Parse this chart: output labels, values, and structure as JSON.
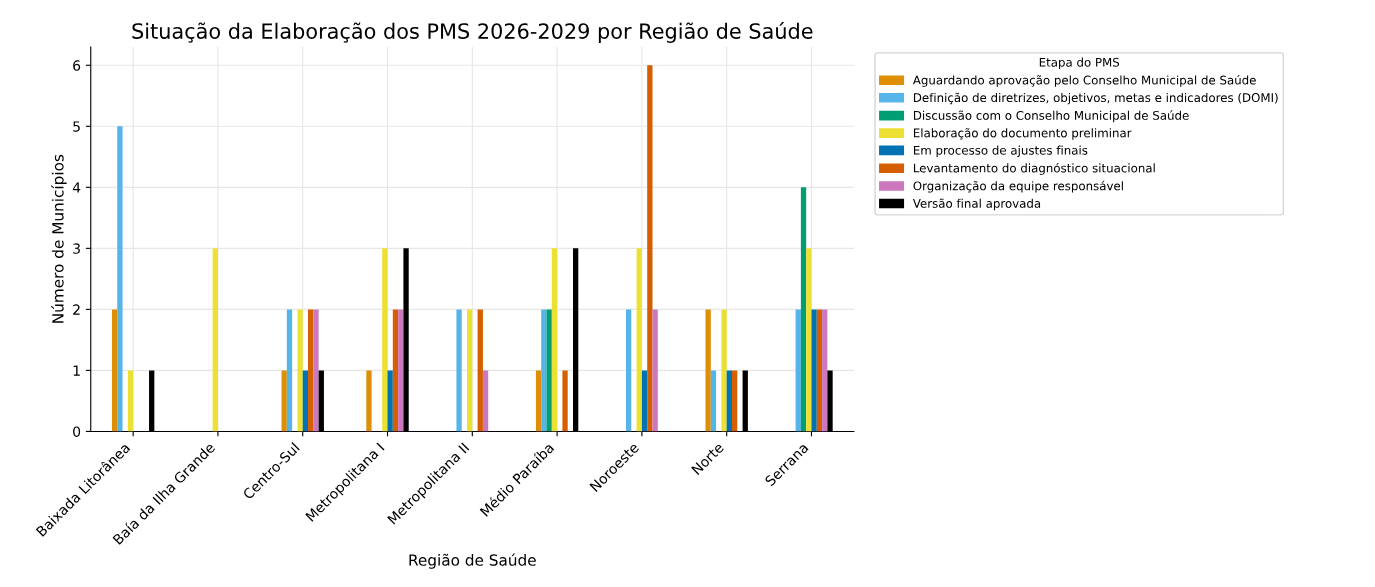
{
  "chart_data": {
    "type": "bar",
    "title": "Situação da Elaboração dos PMS 2026-2029 por Região de Saúde",
    "xlabel": "Região de Saúde",
    "ylabel": "Número de Municípios",
    "legend_title": "Etapa do PMS",
    "categories": [
      "Baixada Litorânea",
      "Baía da Ilha Grande",
      "Centro-Sul",
      "Metropolitana I",
      "Metropolitana II",
      "Médio Paraíba",
      "Noroeste",
      "Norte",
      "Serrana"
    ],
    "series": [
      {
        "name": "Aguardando aprovação pelo Conselho Municipal de Saúde",
        "color": "#de8f05",
        "values": [
          2,
          0,
          1,
          1,
          0,
          1,
          0,
          2,
          0
        ]
      },
      {
        "name": "Definição de diretrizes, objetivos, metas e indicadores (DOMI)",
        "color": "#56b4e9",
        "values": [
          5,
          0,
          2,
          0,
          2,
          2,
          2,
          1,
          2
        ]
      },
      {
        "name": "Discussão com o Conselho Municipal de Saúde",
        "color": "#029e73",
        "values": [
          0,
          0,
          0,
          0,
          0,
          2,
          0,
          0,
          4
        ]
      },
      {
        "name": "Elaboração do documento preliminar",
        "color": "#ece133",
        "values": [
          1,
          3,
          2,
          3,
          2,
          3,
          3,
          2,
          3
        ]
      },
      {
        "name": "Em processo de ajustes finais",
        "color": "#0173b2",
        "values": [
          0,
          0,
          1,
          1,
          0,
          0,
          1,
          1,
          2
        ]
      },
      {
        "name": "Levantamento do diagnóstico situacional",
        "color": "#d55e00",
        "values": [
          0,
          0,
          2,
          2,
          2,
          1,
          6,
          1,
          2
        ]
      },
      {
        "name": "Organização da equipe responsável",
        "color": "#cc78bc",
        "values": [
          0,
          0,
          2,
          2,
          1,
          0,
          2,
          0,
          2
        ]
      },
      {
        "name": "Versão final aprovada",
        "color": "#000000",
        "values": [
          1,
          0,
          1,
          3,
          0,
          3,
          0,
          1,
          1
        ]
      }
    ],
    "ylim": [
      0,
      6.3
    ],
    "yticks": [
      0,
      1,
      2,
      3,
      4,
      5,
      6
    ],
    "grid": true,
    "legend": "top right"
  }
}
